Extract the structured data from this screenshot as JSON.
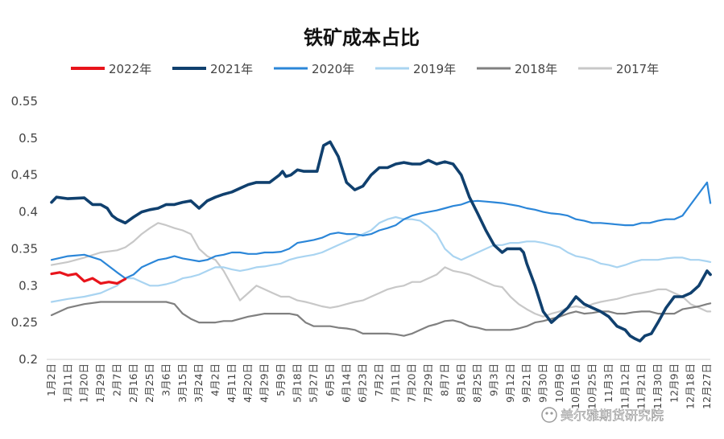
{
  "chart_data": {
    "type": "line",
    "title": "铁矿成本占比",
    "xlabel": "",
    "ylabel": "",
    "ylim": [
      0.2,
      0.55
    ],
    "yticks": [
      "0.2",
      "0.25",
      "0.3",
      "0.35",
      "0.4",
      "0.45",
      "0.5",
      "0.55"
    ],
    "grid": false,
    "legend_position": "top",
    "x_categories": [
      "1月2日",
      "1月11日",
      "1月20日",
      "1月29日",
      "2月7日",
      "2月16日",
      "2月25日",
      "3月6日",
      "3月15日",
      "3月24日",
      "4月2日",
      "4月11日",
      "4月20日",
      "4月29日",
      "5月9日",
      "5月18日",
      "5月27日",
      "6月5日",
      "6月14日",
      "6月23日",
      "7月2日",
      "7月11日",
      "7月20日",
      "7月29日",
      "8月7日",
      "8月16日",
      "8月25日",
      "9月3日",
      "9月12日",
      "9月21日",
      "9月30日",
      "10月9日",
      "10月16日",
      "10月25日",
      "11月3日",
      "11月12日",
      "11月21日",
      "11月30日",
      "12月9日",
      "12月18日",
      "12月27日"
    ],
    "series": [
      {
        "name": "2022年",
        "color": "#e8141b",
        "x": [
          0,
          0.5,
          1,
          1.5,
          2,
          2.5,
          3,
          3.5,
          4,
          4.5
        ],
        "y": [
          0.316,
          0.318,
          0.314,
          0.316,
          0.306,
          0.31,
          0.303,
          0.305,
          0.303,
          0.309
        ]
      },
      {
        "name": "2021年",
        "color": "#10406e",
        "x": [
          0,
          0.3,
          1,
          2,
          2.5,
          3,
          3.4,
          3.7,
          4,
          4.5,
          5,
          5.5,
          6,
          6.5,
          7,
          7.5,
          8,
          8.5,
          9,
          9.5,
          10,
          10.5,
          11,
          11.5,
          12,
          12.5,
          13,
          13.3,
          13.6,
          13.9,
          14.1,
          14.3,
          14.6,
          15,
          15.4,
          15.8,
          16.2,
          16.6,
          17,
          17.5,
          18,
          18.5,
          19,
          19.5,
          20,
          20.5,
          21,
          21.5,
          22,
          22.5,
          23,
          23.5,
          24,
          24.5,
          25,
          25.5,
          26,
          26.5,
          27,
          27.5,
          27.8,
          28.2,
          28.6,
          28.8,
          29,
          29.5,
          30,
          30.5,
          31,
          31.5,
          32,
          32.5,
          33,
          33.5,
          34,
          34.5,
          35,
          35.3,
          35.6,
          35.9,
          36.2,
          36.6,
          37,
          37.5,
          38,
          38.5,
          39,
          39.5,
          40,
          40.2
        ],
        "y": [
          0.413,
          0.42,
          0.418,
          0.419,
          0.41,
          0.41,
          0.405,
          0.395,
          0.39,
          0.385,
          0.393,
          0.4,
          0.403,
          0.405,
          0.41,
          0.41,
          0.413,
          0.415,
          0.405,
          0.415,
          0.42,
          0.424,
          0.427,
          0.432,
          0.437,
          0.44,
          0.44,
          0.44,
          0.445,
          0.45,
          0.455,
          0.448,
          0.45,
          0.457,
          0.455,
          0.455,
          0.455,
          0.49,
          0.495,
          0.475,
          0.44,
          0.43,
          0.435,
          0.45,
          0.46,
          0.46,
          0.465,
          0.467,
          0.465,
          0.465,
          0.47,
          0.465,
          0.468,
          0.465,
          0.45,
          0.42,
          0.398,
          0.375,
          0.355,
          0.345,
          0.35,
          0.35,
          0.35,
          0.345,
          0.33,
          0.3,
          0.265,
          0.25,
          0.26,
          0.27,
          0.285,
          0.275,
          0.27,
          0.265,
          0.258,
          0.245,
          0.24,
          0.232,
          0.228,
          0.225,
          0.232,
          0.235,
          0.25,
          0.27,
          0.285,
          0.285,
          0.29,
          0.3,
          0.32,
          0.315
        ]
      },
      {
        "name": "2020年",
        "color": "#2b86d8",
        "x": [
          0,
          1,
          2,
          3,
          4,
          4.5,
          5,
          5.5,
          6,
          6.5,
          7,
          7.5,
          8,
          8.5,
          9,
          9.5,
          10,
          10.5,
          11,
          11.5,
          12,
          12.5,
          13,
          13.5,
          14,
          14.5,
          15,
          15.5,
          16,
          16.5,
          17,
          17.5,
          18,
          18.5,
          19,
          19.5,
          20,
          20.5,
          21,
          21.5,
          22,
          22.5,
          23,
          23.5,
          24,
          24.5,
          25,
          25.5,
          26,
          26.5,
          27,
          27.5,
          28,
          28.5,
          29,
          29.5,
          30,
          30.5,
          31,
          31.5,
          32,
          32.5,
          33,
          33.5,
          34,
          34.5,
          35,
          35.5,
          36,
          36.5,
          37,
          37.5,
          38,
          38.5,
          39,
          39.5,
          40,
          40.2
        ],
        "y": [
          0.335,
          0.34,
          0.342,
          0.335,
          0.318,
          0.31,
          0.315,
          0.325,
          0.33,
          0.335,
          0.337,
          0.34,
          0.337,
          0.335,
          0.333,
          0.335,
          0.34,
          0.342,
          0.345,
          0.345,
          0.343,
          0.343,
          0.345,
          0.345,
          0.346,
          0.35,
          0.358,
          0.36,
          0.362,
          0.365,
          0.37,
          0.372,
          0.37,
          0.37,
          0.368,
          0.37,
          0.375,
          0.378,
          0.382,
          0.39,
          0.395,
          0.398,
          0.4,
          0.402,
          0.405,
          0.408,
          0.41,
          0.414,
          0.415,
          0.414,
          0.413,
          0.412,
          0.41,
          0.408,
          0.405,
          0.403,
          0.4,
          0.398,
          0.397,
          0.395,
          0.39,
          0.388,
          0.385,
          0.385,
          0.384,
          0.383,
          0.382,
          0.382,
          0.385,
          0.385,
          0.388,
          0.39,
          0.39,
          0.395,
          0.41,
          0.425,
          0.44,
          0.412
        ]
      },
      {
        "name": "2019年",
        "color": "#a9d4f1",
        "x": [
          0,
          1,
          2,
          3,
          4,
          4.5,
          5,
          5.5,
          6,
          6.5,
          7,
          7.5,
          8,
          8.5,
          9,
          9.5,
          10,
          10.5,
          11,
          11.5,
          12,
          12.5,
          13,
          13.5,
          14,
          14.5,
          15,
          15.5,
          16,
          16.5,
          17,
          17.5,
          18,
          18.5,
          19,
          19.5,
          20,
          20.5,
          21,
          21.5,
          22,
          22.5,
          23,
          23.5,
          24,
          24.5,
          25,
          25.5,
          26,
          26.5,
          27,
          27.5,
          28,
          28.5,
          29,
          29.5,
          30,
          30.5,
          31,
          31.5,
          32,
          32.5,
          33,
          33.5,
          34,
          34.5,
          35,
          35.5,
          36,
          36.5,
          37,
          37.5,
          38,
          38.5,
          39,
          39.5,
          40,
          40.2
        ],
        "y": [
          0.278,
          0.282,
          0.285,
          0.29,
          0.3,
          0.31,
          0.31,
          0.305,
          0.3,
          0.3,
          0.302,
          0.305,
          0.31,
          0.312,
          0.315,
          0.32,
          0.325,
          0.325,
          0.322,
          0.32,
          0.322,
          0.325,
          0.326,
          0.328,
          0.33,
          0.335,
          0.338,
          0.34,
          0.342,
          0.345,
          0.35,
          0.355,
          0.36,
          0.365,
          0.37,
          0.375,
          0.385,
          0.39,
          0.393,
          0.39,
          0.39,
          0.388,
          0.38,
          0.37,
          0.35,
          0.34,
          0.335,
          0.34,
          0.345,
          0.35,
          0.355,
          0.355,
          0.358,
          0.358,
          0.36,
          0.36,
          0.358,
          0.355,
          0.352,
          0.345,
          0.34,
          0.338,
          0.335,
          0.33,
          0.328,
          0.325,
          0.328,
          0.332,
          0.335,
          0.335,
          0.335,
          0.337,
          0.338,
          0.338,
          0.335,
          0.335,
          0.333,
          0.332
        ]
      },
      {
        "name": "2018年",
        "color": "#808080",
        "x": [
          0,
          1,
          2,
          3,
          4,
          5,
          6,
          7,
          7.5,
          8,
          8.5,
          9,
          9.5,
          10,
          10.5,
          11,
          11.5,
          12,
          12.5,
          13,
          13.5,
          14,
          14.5,
          15,
          15.5,
          16,
          16.5,
          17,
          17.5,
          18,
          18.5,
          19,
          19.5,
          20,
          20.5,
          21,
          21.5,
          22,
          22.5,
          23,
          23.5,
          24,
          24.5,
          25,
          25.5,
          26,
          26.5,
          27,
          27.5,
          28,
          28.5,
          29,
          29.5,
          30,
          30.5,
          31,
          31.5,
          32,
          32.5,
          33,
          33.5,
          34,
          34.5,
          35,
          35.5,
          36,
          36.5,
          37,
          37.5,
          38,
          38.5,
          39,
          39.5,
          40,
          40.2
        ],
        "y": [
          0.26,
          0.27,
          0.275,
          0.278,
          0.278,
          0.278,
          0.278,
          0.278,
          0.275,
          0.262,
          0.255,
          0.25,
          0.25,
          0.25,
          0.252,
          0.252,
          0.255,
          0.258,
          0.26,
          0.262,
          0.262,
          0.262,
          0.262,
          0.26,
          0.25,
          0.245,
          0.245,
          0.245,
          0.243,
          0.242,
          0.24,
          0.235,
          0.235,
          0.235,
          0.235,
          0.234,
          0.232,
          0.235,
          0.24,
          0.245,
          0.248,
          0.252,
          0.253,
          0.25,
          0.245,
          0.243,
          0.24,
          0.24,
          0.24,
          0.24,
          0.242,
          0.245,
          0.25,
          0.252,
          0.255,
          0.258,
          0.262,
          0.265,
          0.262,
          0.263,
          0.265,
          0.265,
          0.262,
          0.262,
          0.264,
          0.265,
          0.265,
          0.262,
          0.262,
          0.262,
          0.268,
          0.27,
          0.272,
          0.275,
          0.276
        ]
      },
      {
        "name": "2017年",
        "color": "#c8c8c8",
        "x": [
          0,
          1,
          2,
          3,
          4,
          4.5,
          5,
          5.5,
          6,
          6.5,
          7,
          7.5,
          8,
          8.5,
          9,
          9.5,
          10,
          10.5,
          11,
          11.5,
          12,
          12.5,
          13,
          13.5,
          14,
          14.5,
          15,
          15.5,
          16,
          16.5,
          17,
          17.5,
          18,
          18.5,
          19,
          19.5,
          20,
          20.5,
          21,
          21.5,
          22,
          22.5,
          23,
          23.5,
          24,
          24.5,
          25,
          25.5,
          26,
          26.5,
          27,
          27.5,
          28,
          28.5,
          29,
          29.5,
          30,
          30.5,
          31,
          31.5,
          32,
          32.5,
          33,
          33.5,
          34,
          34.5,
          35,
          35.5,
          36,
          36.5,
          37,
          37.5,
          38,
          38.5,
          39,
          39.5,
          40,
          40.2
        ],
        "y": [
          0.328,
          0.332,
          0.338,
          0.345,
          0.348,
          0.352,
          0.36,
          0.37,
          0.378,
          0.385,
          0.382,
          0.378,
          0.375,
          0.37,
          0.35,
          0.34,
          0.335,
          0.32,
          0.3,
          0.28,
          0.29,
          0.3,
          0.295,
          0.29,
          0.285,
          0.285,
          0.28,
          0.278,
          0.275,
          0.272,
          0.27,
          0.272,
          0.275,
          0.278,
          0.28,
          0.285,
          0.29,
          0.295,
          0.298,
          0.3,
          0.305,
          0.305,
          0.31,
          0.315,
          0.325,
          0.32,
          0.318,
          0.315,
          0.31,
          0.305,
          0.3,
          0.298,
          0.285,
          0.275,
          0.268,
          0.262,
          0.258,
          0.262,
          0.265,
          0.27,
          0.272,
          0.27,
          0.275,
          0.278,
          0.28,
          0.282,
          0.285,
          0.288,
          0.29,
          0.292,
          0.295,
          0.295,
          0.29,
          0.285,
          0.275,
          0.27,
          0.265,
          0.265
        ]
      }
    ]
  },
  "watermark": {
    "text": "美尔雅期货研究院"
  }
}
